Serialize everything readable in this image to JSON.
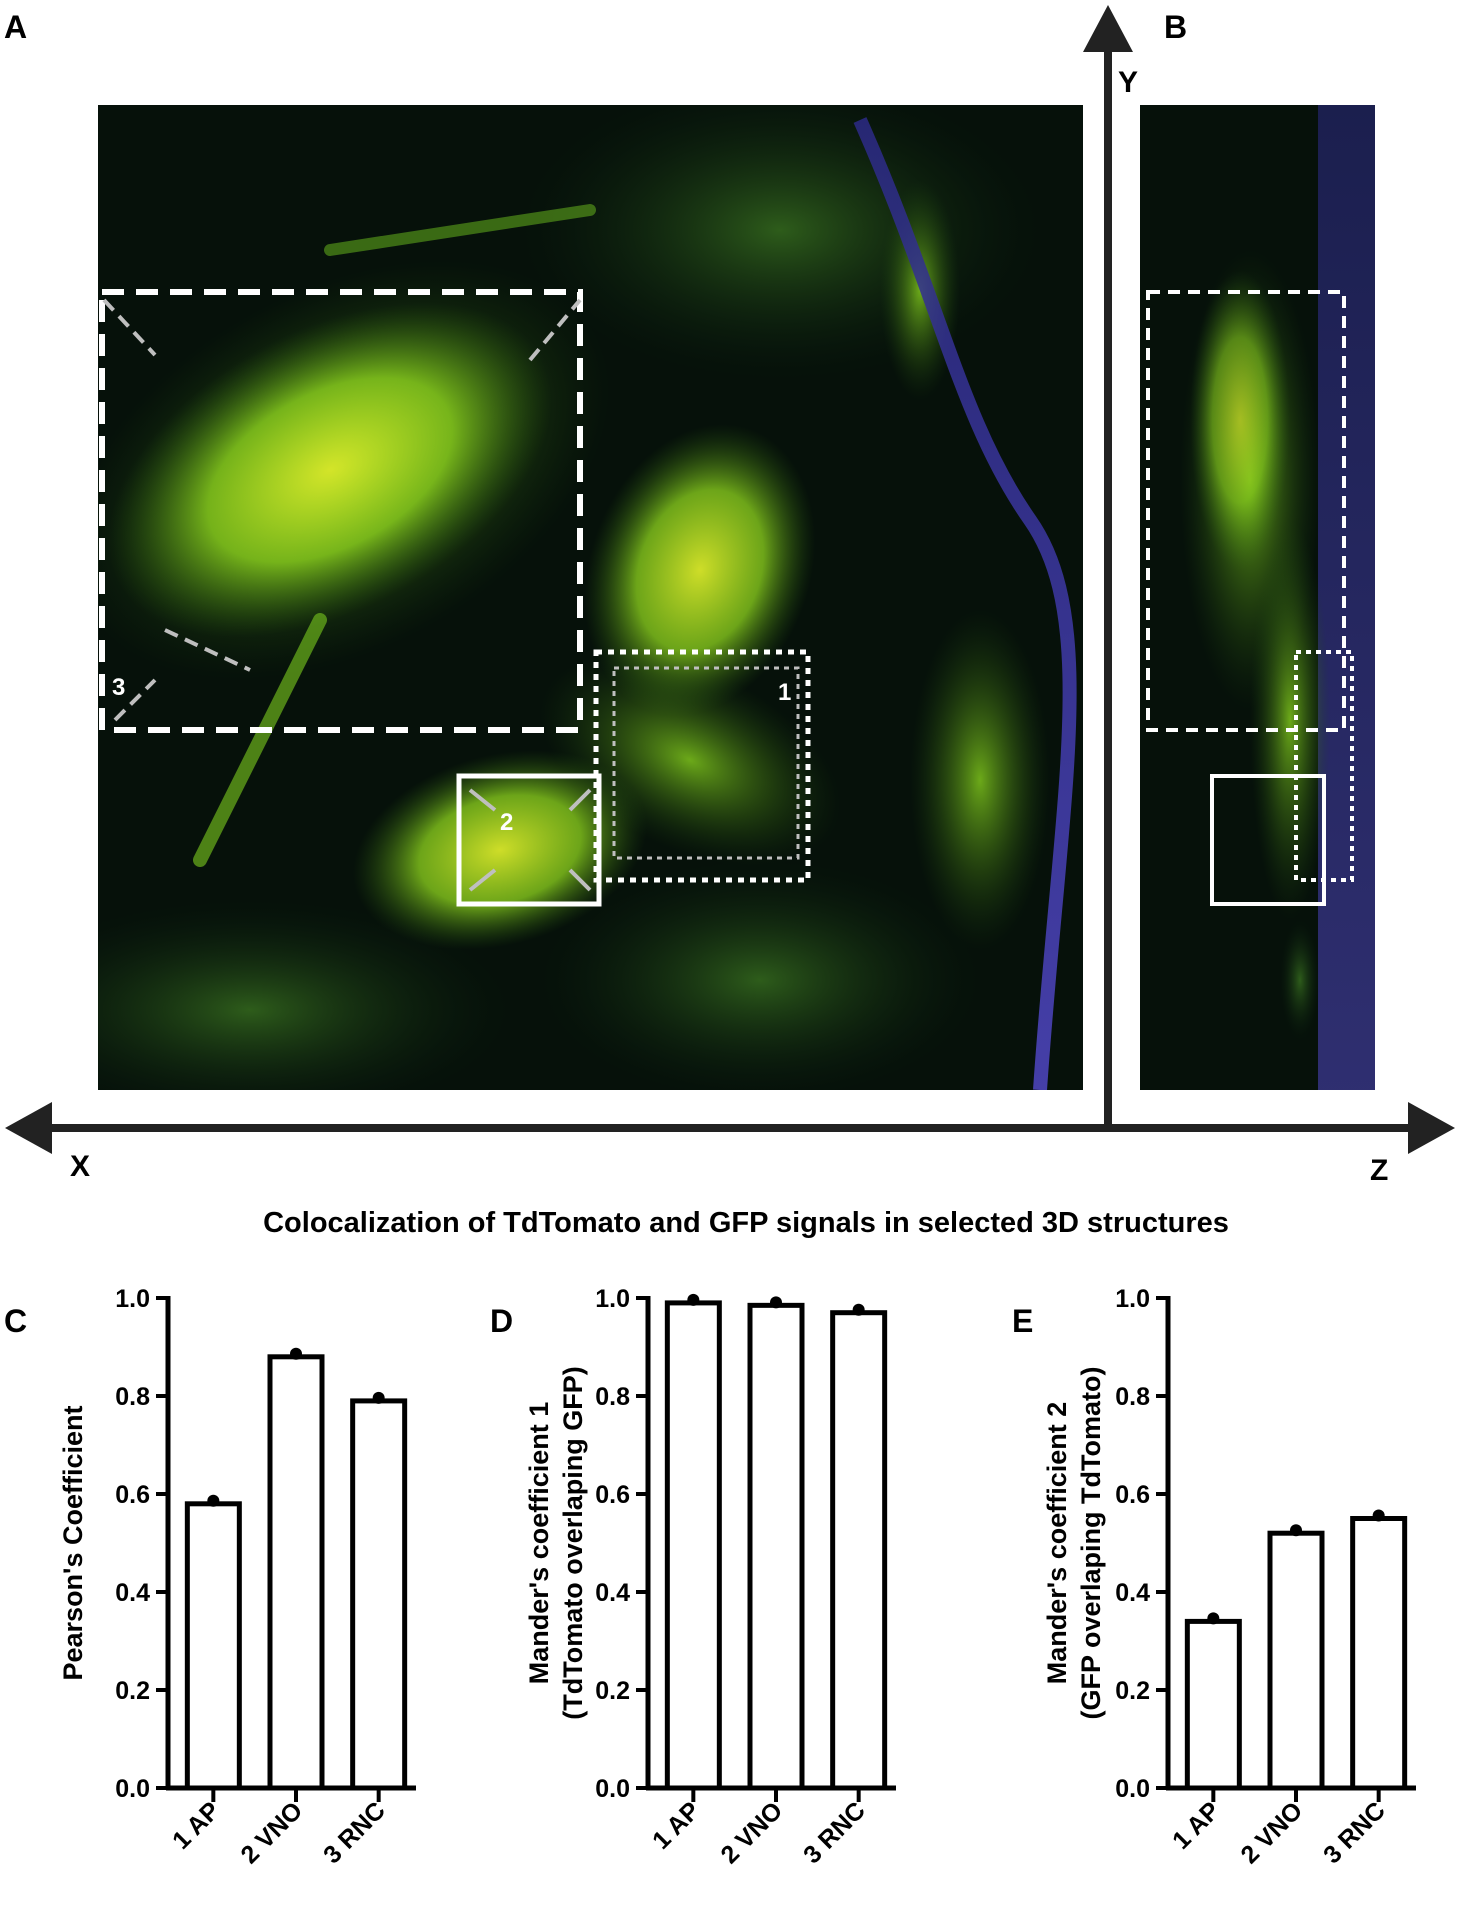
{
  "panels": {
    "A": "A",
    "B": "B",
    "C": "C",
    "D": "D",
    "E": "E"
  },
  "axes_3d": {
    "x": "X",
    "y": "Y",
    "z": "Z"
  },
  "roi_labels": [
    "1",
    "2",
    "3"
  ],
  "caption": "Colocalization of TdTomato and GFP signals in selected 3D structures",
  "colors": {
    "background": "#ffffff",
    "bar_fill": "#ffffff",
    "bar_stroke": "#000000",
    "micrograph_dark": "#06110a",
    "gfp": "#8fd61e",
    "tdtomato": "#e2452a",
    "dapi": "#3a35a8"
  },
  "chart_data": [
    {
      "panel": "C",
      "type": "bar",
      "categories": [
        "1 AP",
        "2 VNO",
        "3 RNC"
      ],
      "values": [
        0.58,
        0.88,
        0.79
      ],
      "ylabel": [
        "Pearson's Coefficient"
      ],
      "ylim": [
        0,
        1.0
      ],
      "yticks": [
        "0.0",
        "0.2",
        "0.4",
        "0.6",
        "0.8",
        "1.0"
      ]
    },
    {
      "panel": "D",
      "type": "bar",
      "categories": [
        "1 AP",
        "2 VNO",
        "3 RNC"
      ],
      "values": [
        0.99,
        0.985,
        0.97
      ],
      "ylabel": [
        "Mander's coefficient 1",
        "(TdTomato overlaping GFP)"
      ],
      "ylim": [
        0,
        1.0
      ],
      "yticks": [
        "0.0",
        "0.2",
        "0.4",
        "0.6",
        "0.8",
        "1.0"
      ]
    },
    {
      "panel": "E",
      "type": "bar",
      "categories": [
        "1 AP",
        "2 VNO",
        "3 RNC"
      ],
      "values": [
        0.34,
        0.52,
        0.55
      ],
      "ylabel": [
        "Mander's coefficient 2",
        "(GFP overlaping TdTomato)"
      ],
      "ylim": [
        0,
        1.0
      ],
      "yticks": [
        "0.0",
        "0.2",
        "0.4",
        "0.6",
        "0.8",
        "1.0"
      ]
    }
  ]
}
